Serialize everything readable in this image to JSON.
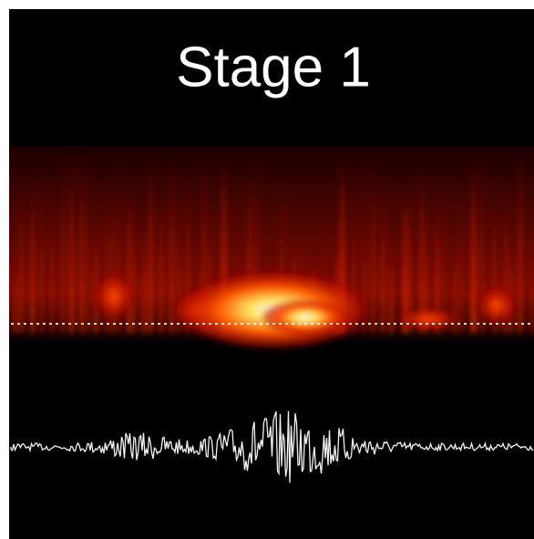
{
  "title": "Stage 1"
}
